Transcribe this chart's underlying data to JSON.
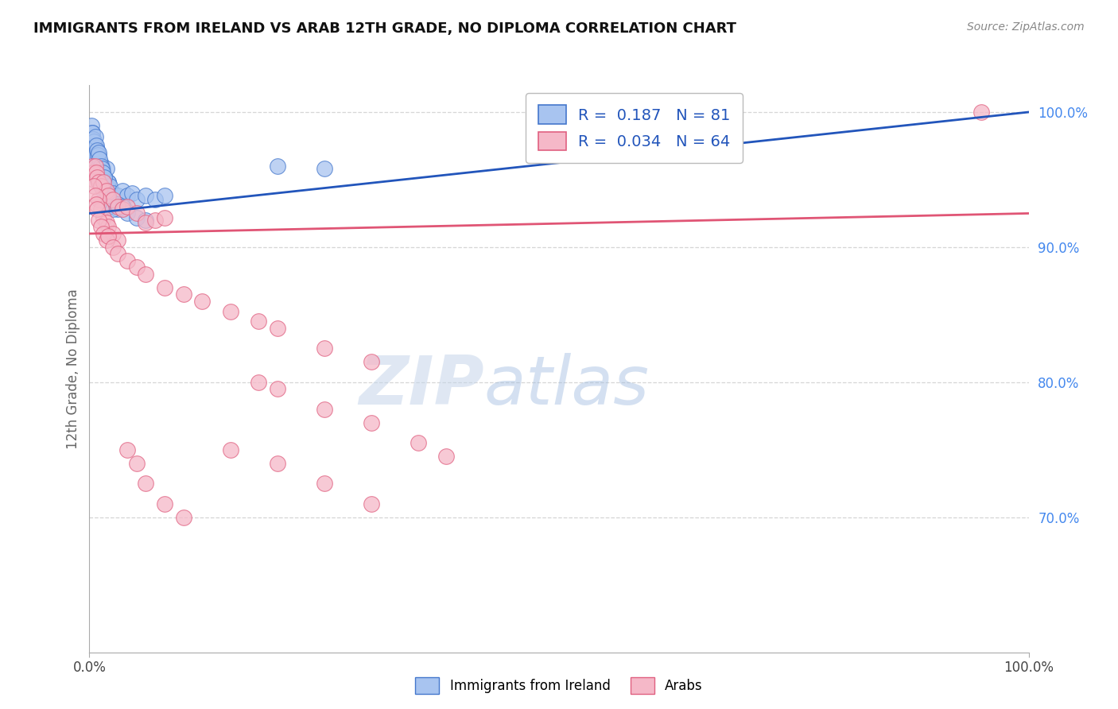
{
  "title": "IMMIGRANTS FROM IRELAND VS ARAB 12TH GRADE, NO DIPLOMA CORRELATION CHART",
  "source": "Source: ZipAtlas.com",
  "ylabel": "12th Grade, No Diploma",
  "legend_label1": "Immigrants from Ireland",
  "legend_label2": "Arabs",
  "R1": 0.187,
  "N1": 81,
  "R2": 0.034,
  "N2": 64,
  "color_ireland": "#a8c4f0",
  "color_arab": "#f5b8c8",
  "edge_ireland": "#4477cc",
  "edge_arab": "#e06080",
  "line_ireland": "#2255bb",
  "line_arab": "#e05575",
  "background_color": "#ffffff",
  "grid_color": "#cccccc",
  "right_tick_color": "#4488ee",
  "watermark_zip": "ZIP",
  "watermark_atlas": "atlas",
  "ylim_min": 0.6,
  "ylim_max": 1.02,
  "xlim_min": 0.0,
  "xlim_max": 1.0,
  "yticks": [
    1.0,
    0.9,
    0.8,
    0.7
  ],
  "ytick_labels": [
    "100.0%",
    "90.0%",
    "80.0%",
    "70.0%"
  ],
  "ireland_line_x0": 0.0,
  "ireland_line_y0": 0.925,
  "ireland_line_x1": 1.0,
  "ireland_line_y1": 1.0,
  "arab_line_x0": 0.0,
  "arab_line_y0": 0.91,
  "arab_line_x1": 1.0,
  "arab_line_y1": 0.925,
  "ireland_cluster_x": [
    0.002,
    0.003,
    0.003,
    0.004,
    0.004,
    0.005,
    0.005,
    0.005,
    0.006,
    0.006,
    0.006,
    0.007,
    0.007,
    0.008,
    0.008,
    0.008,
    0.009,
    0.009,
    0.01,
    0.01,
    0.011,
    0.011,
    0.012,
    0.013,
    0.014,
    0.015,
    0.016,
    0.018,
    0.02,
    0.003,
    0.004,
    0.005,
    0.006,
    0.007,
    0.008,
    0.009,
    0.01,
    0.012,
    0.014,
    0.016,
    0.018,
    0.02,
    0.022,
    0.025,
    0.03,
    0.035,
    0.04,
    0.045,
    0.05,
    0.06,
    0.07,
    0.08,
    0.01,
    0.012,
    0.015,
    0.018,
    0.02,
    0.025,
    0.03,
    0.003,
    0.004,
    0.005,
    0.006,
    0.007,
    0.008,
    0.009,
    0.01,
    0.011,
    0.012,
    0.013,
    0.014,
    0.016,
    0.2,
    0.25,
    0.02,
    0.025,
    0.03,
    0.035,
    0.04,
    0.05,
    0.06
  ],
  "ireland_cluster_y": [
    0.99,
    0.985,
    0.975,
    0.98,
    0.97,
    0.975,
    0.968,
    0.96,
    0.975,
    0.968,
    0.955,
    0.97,
    0.96,
    0.972,
    0.962,
    0.952,
    0.965,
    0.955,
    0.968,
    0.958,
    0.96,
    0.95,
    0.962,
    0.955,
    0.958,
    0.95,
    0.952,
    0.958,
    0.948,
    0.965,
    0.958,
    0.962,
    0.968,
    0.96,
    0.955,
    0.95,
    0.96,
    0.955,
    0.948,
    0.95,
    0.945,
    0.948,
    0.945,
    0.94,
    0.938,
    0.942,
    0.938,
    0.94,
    0.935,
    0.938,
    0.935,
    0.938,
    0.95,
    0.945,
    0.942,
    0.94,
    0.935,
    0.93,
    0.928,
    0.985,
    0.98,
    0.978,
    0.982,
    0.975,
    0.972,
    0.968,
    0.97,
    0.965,
    0.96,
    0.958,
    0.955,
    0.952,
    0.96,
    0.958,
    0.93,
    0.928,
    0.932,
    0.93,
    0.925,
    0.922,
    0.92
  ],
  "arab_x": [
    0.003,
    0.004,
    0.005,
    0.006,
    0.007,
    0.008,
    0.01,
    0.012,
    0.015,
    0.018,
    0.02,
    0.025,
    0.03,
    0.035,
    0.04,
    0.05,
    0.06,
    0.07,
    0.08,
    0.01,
    0.012,
    0.015,
    0.018,
    0.02,
    0.025,
    0.03,
    0.005,
    0.006,
    0.007,
    0.008,
    0.01,
    0.012,
    0.015,
    0.018,
    0.02,
    0.025,
    0.03,
    0.04,
    0.05,
    0.06,
    0.08,
    0.1,
    0.12,
    0.15,
    0.18,
    0.2,
    0.25,
    0.3,
    0.18,
    0.2,
    0.25,
    0.3,
    0.35,
    0.38,
    0.15,
    0.2,
    0.25,
    0.3,
    0.04,
    0.05,
    0.06,
    0.08,
    0.1,
    0.95
  ],
  "arab_y": [
    0.96,
    0.955,
    0.95,
    0.96,
    0.955,
    0.952,
    0.948,
    0.945,
    0.948,
    0.942,
    0.938,
    0.935,
    0.93,
    0.928,
    0.93,
    0.925,
    0.918,
    0.92,
    0.922,
    0.935,
    0.928,
    0.922,
    0.918,
    0.915,
    0.91,
    0.905,
    0.945,
    0.938,
    0.932,
    0.928,
    0.92,
    0.915,
    0.91,
    0.905,
    0.908,
    0.9,
    0.895,
    0.89,
    0.885,
    0.88,
    0.87,
    0.865,
    0.86,
    0.852,
    0.845,
    0.84,
    0.825,
    0.815,
    0.8,
    0.795,
    0.78,
    0.77,
    0.755,
    0.745,
    0.75,
    0.74,
    0.725,
    0.71,
    0.75,
    0.74,
    0.725,
    0.71,
    0.7,
    1.0
  ]
}
